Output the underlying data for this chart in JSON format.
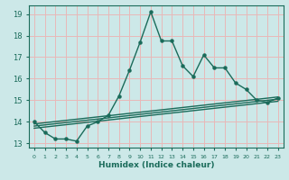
{
  "title": "",
  "xlabel": "Humidex (Indice chaleur)",
  "ylabel": "",
  "bg_color": "#cce8e8",
  "grid_color": "#e8b8b8",
  "line_color": "#1a6b5a",
  "xlim": [
    -0.5,
    23.5
  ],
  "ylim": [
    12.8,
    19.4
  ],
  "xticks": [
    0,
    1,
    2,
    3,
    4,
    5,
    6,
    7,
    8,
    9,
    10,
    11,
    12,
    13,
    14,
    15,
    16,
    17,
    18,
    19,
    20,
    21,
    22,
    23
  ],
  "yticks": [
    13,
    14,
    15,
    16,
    17,
    18,
    19
  ],
  "main_line_x": [
    0,
    1,
    2,
    3,
    4,
    5,
    6,
    7,
    8,
    9,
    10,
    11,
    12,
    13,
    14,
    15,
    16,
    17,
    18,
    19,
    20,
    21,
    22,
    23
  ],
  "main_line_y": [
    14.0,
    13.5,
    13.2,
    13.2,
    13.1,
    13.8,
    14.0,
    14.3,
    15.2,
    16.4,
    17.7,
    19.1,
    17.75,
    17.75,
    16.6,
    16.1,
    17.1,
    16.5,
    16.5,
    15.8,
    15.5,
    15.0,
    14.9,
    15.1
  ],
  "trend1_x": [
    0,
    23
  ],
  "trend1_y": [
    13.9,
    15.15
  ],
  "trend2_x": [
    0,
    23
  ],
  "trend2_y": [
    13.8,
    15.05
  ],
  "trend3_x": [
    0,
    23
  ],
  "trend3_y": [
    13.7,
    14.95
  ],
  "marker_size": 2.2,
  "line_width": 1.0,
  "xlabel_fontsize": 6.5,
  "xlabel_color": "#1a6b5a",
  "xtick_fontsize": 4.5,
  "ytick_fontsize": 6.0
}
